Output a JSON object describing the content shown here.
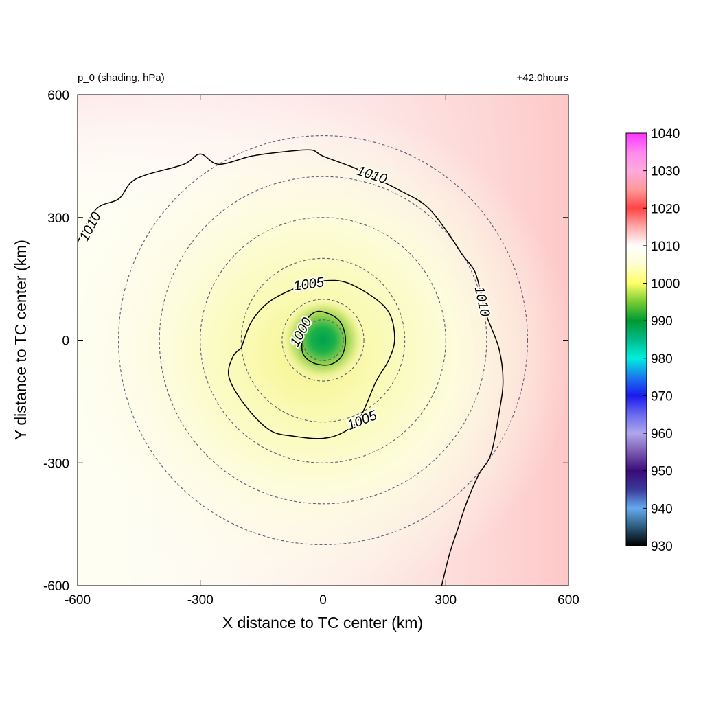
{
  "chart_data": {
    "type": "heatmap",
    "title_left": "p_0 (shading, hPa)",
    "title_right": "+42.0hours",
    "xlabel": "X distance to TC center (km)",
    "ylabel": "Y distance to TC center (km)",
    "xlim": [
      -600,
      600
    ],
    "ylim": [
      -600,
      600
    ],
    "x_ticks": [
      -600,
      -300,
      0,
      300,
      600
    ],
    "y_ticks": [
      -600,
      -300,
      0,
      300,
      600
    ],
    "colorbar": {
      "min": 930,
      "max": 1040,
      "ticks": [
        930,
        940,
        950,
        960,
        970,
        980,
        990,
        1000,
        1010,
        1020,
        1030,
        1040
      ],
      "stops": [
        {
          "v": 930,
          "c": "#000000"
        },
        {
          "v": 935,
          "c": "#2a5a7a"
        },
        {
          "v": 940,
          "c": "#66aaee"
        },
        {
          "v": 945,
          "c": "#3a3a9a"
        },
        {
          "v": 950,
          "c": "#3a0a7a"
        },
        {
          "v": 955,
          "c": "#7a5ab0"
        },
        {
          "v": 960,
          "c": "#b0a6ee"
        },
        {
          "v": 965,
          "c": "#6a6aee"
        },
        {
          "v": 970,
          "c": "#1a1aee"
        },
        {
          "v": 975,
          "c": "#1a7aee"
        },
        {
          "v": 980,
          "c": "#00eedd"
        },
        {
          "v": 985,
          "c": "#00bb88"
        },
        {
          "v": 990,
          "c": "#009933"
        },
        {
          "v": 995,
          "c": "#77cc33"
        },
        {
          "v": 1000,
          "c": "#ffff66"
        },
        {
          "v": 1005,
          "c": "#fdfdd0"
        },
        {
          "v": 1010,
          "c": "#ffffff"
        },
        {
          "v": 1015,
          "c": "#ffaaaa"
        },
        {
          "v": 1020,
          "c": "#ff4444"
        },
        {
          "v": 1025,
          "c": "#ff9999"
        },
        {
          "v": 1030,
          "c": "#ffaadd"
        },
        {
          "v": 1035,
          "c": "#ff88ee"
        },
        {
          "v": 1040,
          "c": "#ff33ff"
        }
      ]
    },
    "reference_circles_km": [
      50,
      100,
      200,
      300,
      400,
      500
    ],
    "contours": [
      {
        "level_label": "1000",
        "points": [
          [
            -50,
            15
          ],
          [
            -40,
            50
          ],
          [
            -15,
            70
          ],
          [
            20,
            62
          ],
          [
            45,
            40
          ],
          [
            55,
            0
          ],
          [
            45,
            -40
          ],
          [
            15,
            -60
          ],
          [
            -25,
            -55
          ],
          [
            -50,
            -30
          ],
          [
            -50,
            15
          ]
        ]
      },
      {
        "level_label": "1005",
        "points": [
          [
            -200,
            -20
          ],
          [
            -175,
            45
          ],
          [
            -130,
            95
          ],
          [
            -60,
            130
          ],
          [
            0,
            145
          ],
          [
            60,
            140
          ],
          [
            130,
            100
          ],
          [
            165,
            60
          ],
          [
            175,
            0
          ],
          [
            160,
            -50
          ],
          [
            130,
            -100
          ],
          [
            90,
            -190
          ],
          [
            50,
            -225
          ],
          [
            0,
            -240
          ],
          [
            -70,
            -235
          ],
          [
            -130,
            -220
          ],
          [
            -190,
            -160
          ],
          [
            -230,
            -90
          ],
          [
            -220,
            -40
          ],
          [
            -200,
            -20
          ]
        ]
      },
      {
        "level_label": "1010",
        "points": [
          [
            -600,
            240
          ],
          [
            -555,
            320
          ],
          [
            -500,
            345
          ],
          [
            -470,
            385
          ],
          [
            -430,
            405
          ],
          [
            -340,
            430
          ],
          [
            -300,
            455
          ],
          [
            -255,
            430
          ],
          [
            -175,
            450
          ],
          [
            -100,
            460
          ],
          [
            -30,
            465
          ],
          [
            0,
            450
          ],
          [
            80,
            420
          ],
          [
            120,
            400
          ],
          [
            180,
            370
          ],
          [
            250,
            330
          ],
          [
            300,
            270
          ],
          [
            340,
            210
          ],
          [
            370,
            170
          ],
          [
            385,
            120
          ],
          [
            400,
            60
          ],
          [
            430,
            -20
          ],
          [
            440,
            -100
          ],
          [
            430,
            -180
          ],
          [
            410,
            -280
          ],
          [
            380,
            -330
          ],
          [
            350,
            -400
          ],
          [
            330,
            -460
          ],
          [
            310,
            -520
          ],
          [
            290,
            -600
          ]
        ]
      }
    ]
  }
}
